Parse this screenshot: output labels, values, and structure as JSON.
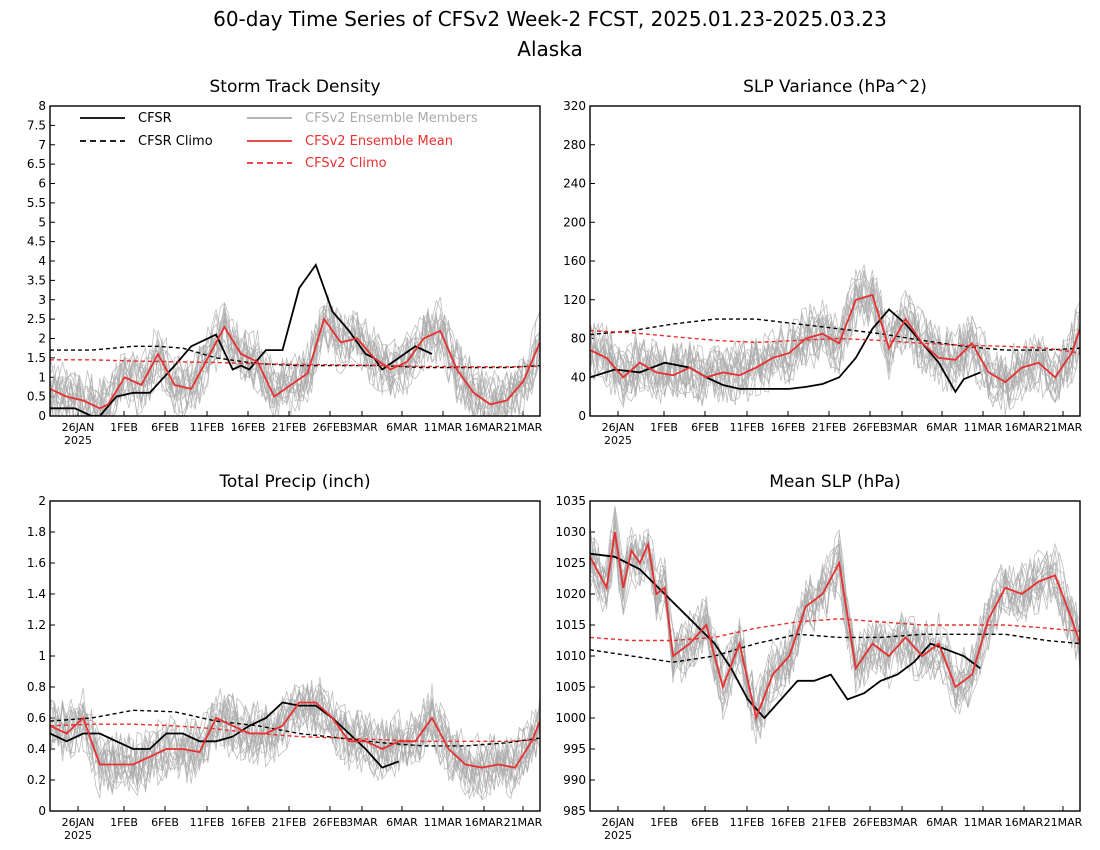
{
  "figure": {
    "title": "60-day Time Series of CFSv2 Week-2 FCST, 2025.01.23-2025.03.23",
    "subtitle": "Alaska"
  },
  "x_axis": {
    "ticks": [
      "26JAN",
      "1FEB",
      "6FEB",
      "11FEB",
      "16FEB",
      "21FEB",
      "26FEB",
      "3MAR",
      "6MAR",
      "11MAR",
      "16MAR",
      "21MAR"
    ],
    "year_label": "2025"
  },
  "legend": {
    "position": "top-left of first panel",
    "entries": [
      {
        "label": "CFSR",
        "color": "#000000",
        "dash": false
      },
      {
        "label": "CFSR Climo",
        "color": "#000000",
        "dash": true
      },
      {
        "label": "CFSv2 Ensemble Members",
        "color": "#aaaaaa",
        "dash": false
      },
      {
        "label": "CFSv2 Ensemble Mean",
        "color": "#e83030",
        "dash": false
      },
      {
        "label": "CFSv2 Climo",
        "color": "#e83030",
        "dash": true
      }
    ]
  },
  "colors": {
    "cfsr": "#000000",
    "members": "#aaaaaa",
    "mean": "#e83030",
    "frame": "#000000"
  },
  "chart_data": [
    {
      "type": "line",
      "title": "Storm Track Density",
      "ylim": [
        0,
        8
      ],
      "yticks": [
        "0",
        "0.5",
        "1",
        "1.5",
        "2",
        "2.5",
        "3",
        "3.5",
        "4",
        "4.5",
        "5",
        "5.5",
        "6",
        "6.5",
        "7",
        "7.5",
        "8"
      ],
      "x_days": [
        0,
        59
      ],
      "series": [
        {
          "name": "CFSR",
          "x": [
            0,
            3,
            5,
            6,
            8,
            10,
            12,
            15,
            17,
            20,
            22,
            23,
            24,
            26,
            28,
            30,
            32,
            34,
            36,
            38,
            39,
            40,
            42,
            44,
            46
          ],
          "y": [
            0.2,
            0.2,
            0,
            0,
            0.5,
            0.6,
            0.6,
            1.3,
            1.8,
            2.1,
            1.2,
            1.3,
            1.2,
            1.7,
            1.7,
            3.3,
            3.9,
            2.7,
            2.2,
            1.6,
            1.5,
            1.2,
            1.5,
            1.8,
            1.6
          ]
        },
        {
          "name": "CFSR Climo",
          "x": [
            0,
            5,
            10,
            13,
            16,
            20,
            25,
            30,
            35,
            40,
            45,
            50,
            55,
            59
          ],
          "y": [
            1.7,
            1.7,
            1.8,
            1.8,
            1.75,
            1.5,
            1.35,
            1.3,
            1.3,
            1.3,
            1.25,
            1.25,
            1.25,
            1.3
          ]
        },
        {
          "name": "CFSv2 Ensemble Mean",
          "x": [
            0,
            2,
            4,
            6,
            7,
            9,
            11,
            13,
            15,
            17,
            19,
            21,
            23,
            25,
            27,
            29,
            31,
            33,
            35,
            37,
            39,
            41,
            43,
            45,
            47,
            49,
            51,
            53,
            55,
            57,
            59
          ],
          "y": [
            0.7,
            0.5,
            0.4,
            0.2,
            0.3,
            1.0,
            0.8,
            1.6,
            0.8,
            0.7,
            1.5,
            2.3,
            1.6,
            1.4,
            0.5,
            0.8,
            1.1,
            2.5,
            1.9,
            2.0,
            1.5,
            1.2,
            1.4,
            2.0,
            2.2,
            1.2,
            0.6,
            0.3,
            0.4,
            0.9,
            1.9
          ]
        },
        {
          "name": "CFSv2 Climo",
          "x": [
            0,
            5,
            10,
            15,
            20,
            25,
            30,
            35,
            40,
            45,
            50,
            55,
            59
          ],
          "y": [
            1.45,
            1.45,
            1.42,
            1.4,
            1.38,
            1.35,
            1.33,
            1.32,
            1.3,
            1.28,
            1.27,
            1.27,
            1.28
          ]
        }
      ]
    },
    {
      "type": "line",
      "title": "SLP Variance (hPa^2)",
      "ylim": [
        0,
        320
      ],
      "yticks": [
        "0",
        "40",
        "80",
        "120",
        "160",
        "200",
        "240",
        "280",
        "320"
      ],
      "x_days": [
        0,
        59
      ],
      "series": [
        {
          "name": "CFSR",
          "x": [
            0,
            3,
            6,
            9,
            12,
            14,
            16,
            18,
            20,
            22,
            24,
            26,
            28,
            30,
            32,
            34,
            36,
            38,
            40,
            42,
            44,
            45,
            47
          ],
          "y": [
            40,
            48,
            45,
            55,
            50,
            40,
            32,
            28,
            28,
            28,
            28,
            30,
            33,
            40,
            60,
            90,
            110,
            95,
            75,
            55,
            25,
            38,
            45
          ]
        },
        {
          "name": "CFSR Climo",
          "x": [
            0,
            5,
            10,
            15,
            20,
            25,
            30,
            35,
            40,
            45,
            50,
            55,
            59
          ],
          "y": [
            84,
            88,
            95,
            100,
            100,
            95,
            90,
            85,
            78,
            72,
            68,
            68,
            70
          ]
        },
        {
          "name": "CFSv2 Ensemble Mean",
          "x": [
            0,
            2,
            4,
            6,
            8,
            10,
            12,
            14,
            16,
            18,
            20,
            22,
            24,
            26,
            28,
            30,
            32,
            34,
            36,
            38,
            40,
            42,
            44,
            46,
            48,
            50,
            52,
            54,
            56,
            58,
            59
          ],
          "y": [
            68,
            60,
            40,
            55,
            45,
            42,
            50,
            40,
            45,
            42,
            50,
            60,
            65,
            80,
            85,
            75,
            120,
            125,
            70,
            100,
            75,
            60,
            58,
            75,
            45,
            35,
            50,
            55,
            40,
            65,
            90
          ]
        },
        {
          "name": "CFSv2 Climo",
          "x": [
            0,
            5,
            10,
            15,
            20,
            25,
            30,
            35,
            40,
            45,
            50,
            55,
            59
          ],
          "y": [
            88,
            86,
            82,
            78,
            76,
            78,
            80,
            78,
            75,
            73,
            72,
            70,
            65
          ]
        }
      ]
    },
    {
      "type": "line",
      "title": "Total Precip (inch)",
      "ylim": [
        0,
        2
      ],
      "yticks": [
        "0",
        "0.2",
        "0.4",
        "0.6",
        "0.8",
        "1",
        "1.2",
        "1.4",
        "1.6",
        "1.8",
        "2"
      ],
      "x_days": [
        0,
        59
      ],
      "series": [
        {
          "name": "CFSR",
          "x": [
            0,
            2,
            4,
            6,
            8,
            10,
            12,
            14,
            16,
            18,
            20,
            22,
            24,
            26,
            28,
            30,
            32,
            34,
            36,
            38,
            40,
            42
          ],
          "y": [
            0.5,
            0.45,
            0.5,
            0.5,
            0.45,
            0.4,
            0.4,
            0.5,
            0.5,
            0.45,
            0.45,
            0.48,
            0.55,
            0.6,
            0.7,
            0.68,
            0.68,
            0.6,
            0.5,
            0.4,
            0.28,
            0.32
          ]
        },
        {
          "name": "CFSR Climo",
          "x": [
            0,
            5,
            10,
            15,
            20,
            25,
            30,
            35,
            40,
            45,
            50,
            55,
            59
          ],
          "y": [
            0.58,
            0.6,
            0.65,
            0.64,
            0.58,
            0.55,
            0.5,
            0.47,
            0.44,
            0.42,
            0.42,
            0.44,
            0.47
          ]
        },
        {
          "name": "CFSv2 Ensemble Mean",
          "x": [
            0,
            2,
            4,
            6,
            8,
            10,
            12,
            14,
            16,
            18,
            20,
            22,
            24,
            26,
            28,
            30,
            32,
            34,
            36,
            38,
            40,
            42,
            44,
            46,
            48,
            50,
            52,
            54,
            56,
            58,
            59
          ],
          "y": [
            0.55,
            0.5,
            0.6,
            0.3,
            0.3,
            0.3,
            0.35,
            0.4,
            0.4,
            0.38,
            0.6,
            0.55,
            0.5,
            0.5,
            0.55,
            0.7,
            0.7,
            0.6,
            0.45,
            0.45,
            0.4,
            0.45,
            0.45,
            0.6,
            0.4,
            0.3,
            0.28,
            0.3,
            0.28,
            0.45,
            0.58
          ]
        },
        {
          "name": "CFSv2 Climo",
          "x": [
            0,
            5,
            10,
            15,
            20,
            25,
            30,
            35,
            40,
            45,
            50,
            55,
            59
          ],
          "y": [
            0.55,
            0.56,
            0.56,
            0.55,
            0.53,
            0.5,
            0.48,
            0.47,
            0.46,
            0.45,
            0.45,
            0.45,
            0.46
          ]
        }
      ]
    },
    {
      "type": "line",
      "title": "Mean SLP (hPa)",
      "ylim": [
        985,
        1035
      ],
      "yticks": [
        "985",
        "990",
        "995",
        "1000",
        "1005",
        "1010",
        "1015",
        "1020",
        "1025",
        "1030",
        "1035"
      ],
      "x_days": [
        0,
        59
      ],
      "series": [
        {
          "name": "CFSR",
          "x": [
            0,
            3,
            6,
            9,
            12,
            15,
            17,
            19,
            21,
            23,
            25,
            27,
            29,
            31,
            33,
            35,
            37,
            39,
            41,
            43,
            45,
            47
          ],
          "y": [
            1026.5,
            1026,
            1024,
            1020,
            1016,
            1012,
            1008,
            1003,
            1000,
            1003,
            1006,
            1006,
            1007,
            1003,
            1004,
            1006,
            1007,
            1009,
            1012,
            1011,
            1010,
            1008
          ]
        },
        {
          "name": "CFSR Climo",
          "x": [
            0,
            5,
            10,
            15,
            20,
            25,
            30,
            35,
            40,
            45,
            50,
            55,
            59
          ],
          "y": [
            1011,
            1010,
            1009,
            1010,
            1012,
            1013.5,
            1013,
            1013,
            1013.5,
            1013.5,
            1013.5,
            1012.5,
            1012
          ]
        },
        {
          "name": "CFSv2 Ensemble Mean",
          "x": [
            0,
            2,
            3,
            4,
            5,
            6,
            7,
            8,
            9,
            10,
            12,
            14,
            16,
            18,
            20,
            22,
            24,
            26,
            28,
            30,
            32,
            34,
            36,
            38,
            40,
            42,
            44,
            46,
            48,
            50,
            52,
            54,
            56,
            58,
            59
          ],
          "y": [
            1026,
            1021,
            1030,
            1021,
            1027,
            1025,
            1028,
            1020,
            1021,
            1010,
            1012,
            1015,
            1005,
            1012,
            1000,
            1007,
            1010,
            1018,
            1020,
            1025,
            1008,
            1012,
            1010,
            1013,
            1010,
            1012,
            1005,
            1007,
            1016,
            1021,
            1020,
            1022,
            1023,
            1016,
            1012
          ]
        },
        {
          "name": "CFSv2 Climo",
          "x": [
            0,
            5,
            10,
            15,
            20,
            25,
            30,
            35,
            40,
            45,
            50,
            55,
            59
          ],
          "y": [
            1013,
            1012.5,
            1012.5,
            1013,
            1014.5,
            1015.5,
            1016,
            1015.5,
            1015,
            1015,
            1015,
            1014.5,
            1014
          ]
        }
      ]
    }
  ]
}
